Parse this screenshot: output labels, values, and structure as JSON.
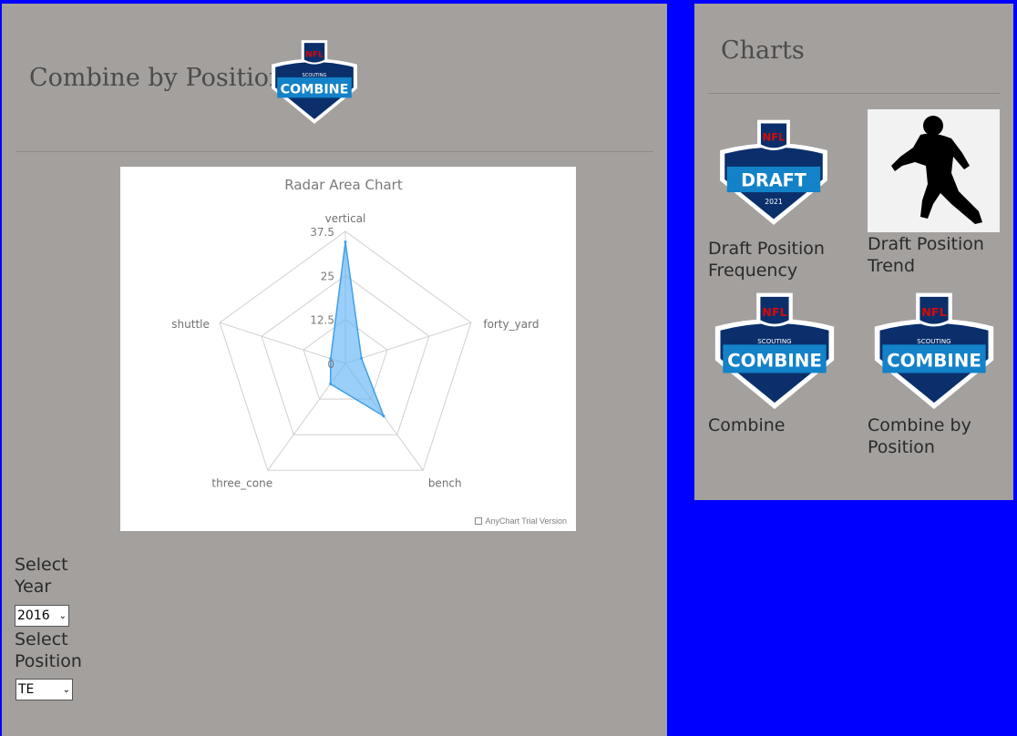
{
  "page": {
    "title": "Combine by Position"
  },
  "chart": {
    "title": "Radar Area Chart",
    "watermark": "AnyChart Trial Version",
    "tick_labels": [
      "0",
      "12.5",
      "25",
      "37.5"
    ]
  },
  "chart_data": {
    "type": "radar-area",
    "title": "Radar Area Chart",
    "categories": [
      "vertical",
      "forty_yard",
      "bench",
      "three_cone",
      "shuttle"
    ],
    "series": [
      {
        "values": [
          34.5,
          4.8,
          18.5,
          7.2,
          4.4
        ]
      }
    ],
    "ylim": [
      0,
      37.5
    ],
    "ticks": [
      0,
      12.5,
      25,
      37.5
    ],
    "grid": true,
    "legend": "none",
    "fill_color": "#64b5f6"
  },
  "controls": {
    "year_label": "Select Year",
    "year_value": "2016",
    "position_label": "Select Position",
    "position_value": "TE"
  },
  "sidebar": {
    "title": "Charts",
    "cards": [
      {
        "label": "Draft Position Frequency",
        "icon": "nfl-draft-2021-logo",
        "logo_text": "DRAFT",
        "logo_sub": "2021"
      },
      {
        "label": "Draft Position Trend",
        "icon": "football-player-silhouette"
      },
      {
        "label": "Combine",
        "icon": "nfl-scouting-combine-logo",
        "logo_text": "COMBINE",
        "logo_sub": "SCOUTING"
      },
      {
        "label": "Combine by Position",
        "icon": "nfl-scouting-combine-logo",
        "logo_text": "COMBINE",
        "logo_sub": "SCOUTING"
      }
    ]
  },
  "logos": {
    "nfl_text": "NFL",
    "combine_text": "COMBINE",
    "scouting_text": "SCOUTING"
  },
  "colors": {
    "background": "#0000ff",
    "panel": "#a3a09e",
    "logo_navy": "#0a2f6b",
    "logo_blue": "#1382c8",
    "nfl_red": "#d50a0a",
    "radar_fill": "#64b5f6"
  }
}
